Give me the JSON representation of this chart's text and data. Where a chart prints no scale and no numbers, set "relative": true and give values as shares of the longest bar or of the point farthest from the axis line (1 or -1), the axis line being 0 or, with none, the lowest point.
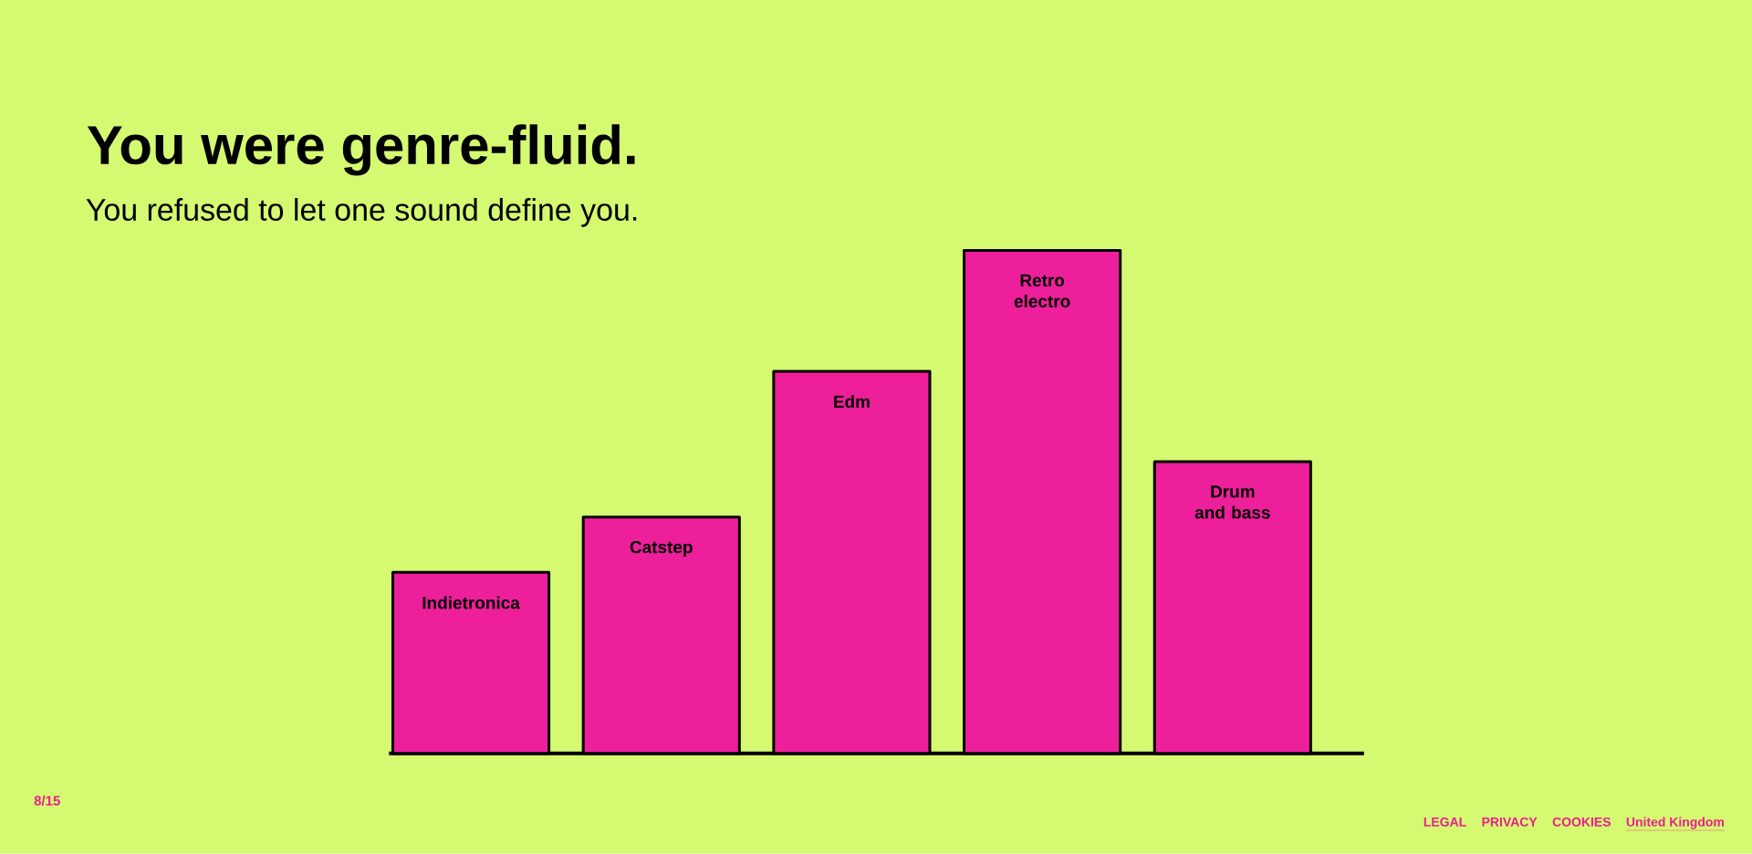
{
  "chart_data": {
    "type": "bar",
    "title": "You were genre-fluid.",
    "subtitle": "You refused to let one sound define you.",
    "categories": [
      "Indietronica",
      "Catstep",
      "Edm",
      "Retro electro",
      "Drum and bass"
    ],
    "values": [
      0.36,
      0.47,
      0.76,
      1,
      0.58
    ],
    "color": "#ee1f9b",
    "relative": true,
    "annotations": [
      "8/15",
      "LEGAL",
      "PRIVACY",
      "COOKIES",
      "United Kingdom"
    ]
  }
}
